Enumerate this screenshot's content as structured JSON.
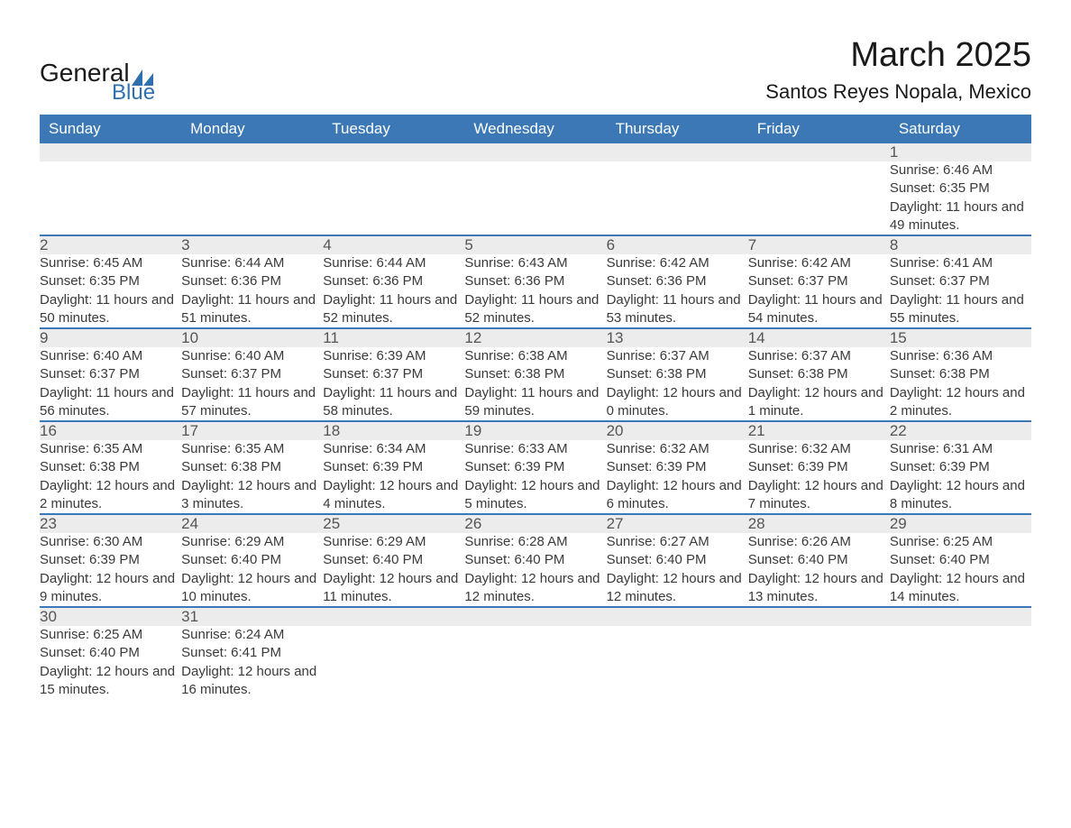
{
  "logo": {
    "general": "General",
    "blue": "Blue",
    "shape_color": "#2f6fad"
  },
  "title": "March 2025",
  "location": "Santos Reyes Nopala, Mexico",
  "colors": {
    "header_bg": "#3b78b5",
    "header_text": "#ffffff",
    "daynum_bg": "#ececec",
    "border": "#3b78b5",
    "body_text": "#3a3a3a"
  },
  "weekdays": [
    "Sunday",
    "Monday",
    "Tuesday",
    "Wednesday",
    "Thursday",
    "Friday",
    "Saturday"
  ],
  "weeks": [
    {
      "nums": [
        "",
        "",
        "",
        "",
        "",
        "",
        "1"
      ],
      "details": [
        "",
        "",
        "",
        "",
        "",
        "",
        "Sunrise: 6:46 AM\nSunset: 6:35 PM\nDaylight: 11 hours and 49 minutes."
      ]
    },
    {
      "nums": [
        "2",
        "3",
        "4",
        "5",
        "6",
        "7",
        "8"
      ],
      "details": [
        "Sunrise: 6:45 AM\nSunset: 6:35 PM\nDaylight: 11 hours and 50 minutes.",
        "Sunrise: 6:44 AM\nSunset: 6:36 PM\nDaylight: 11 hours and 51 minutes.",
        "Sunrise: 6:44 AM\nSunset: 6:36 PM\nDaylight: 11 hours and 52 minutes.",
        "Sunrise: 6:43 AM\nSunset: 6:36 PM\nDaylight: 11 hours and 52 minutes.",
        "Sunrise: 6:42 AM\nSunset: 6:36 PM\nDaylight: 11 hours and 53 minutes.",
        "Sunrise: 6:42 AM\nSunset: 6:37 PM\nDaylight: 11 hours and 54 minutes.",
        "Sunrise: 6:41 AM\nSunset: 6:37 PM\nDaylight: 11 hours and 55 minutes."
      ]
    },
    {
      "nums": [
        "9",
        "10",
        "11",
        "12",
        "13",
        "14",
        "15"
      ],
      "details": [
        "Sunrise: 6:40 AM\nSunset: 6:37 PM\nDaylight: 11 hours and 56 minutes.",
        "Sunrise: 6:40 AM\nSunset: 6:37 PM\nDaylight: 11 hours and 57 minutes.",
        "Sunrise: 6:39 AM\nSunset: 6:37 PM\nDaylight: 11 hours and 58 minutes.",
        "Sunrise: 6:38 AM\nSunset: 6:38 PM\nDaylight: 11 hours and 59 minutes.",
        "Sunrise: 6:37 AM\nSunset: 6:38 PM\nDaylight: 12 hours and 0 minutes.",
        "Sunrise: 6:37 AM\nSunset: 6:38 PM\nDaylight: 12 hours and 1 minute.",
        "Sunrise: 6:36 AM\nSunset: 6:38 PM\nDaylight: 12 hours and 2 minutes."
      ]
    },
    {
      "nums": [
        "16",
        "17",
        "18",
        "19",
        "20",
        "21",
        "22"
      ],
      "details": [
        "Sunrise: 6:35 AM\nSunset: 6:38 PM\nDaylight: 12 hours and 2 minutes.",
        "Sunrise: 6:35 AM\nSunset: 6:38 PM\nDaylight: 12 hours and 3 minutes.",
        "Sunrise: 6:34 AM\nSunset: 6:39 PM\nDaylight: 12 hours and 4 minutes.",
        "Sunrise: 6:33 AM\nSunset: 6:39 PM\nDaylight: 12 hours and 5 minutes.",
        "Sunrise: 6:32 AM\nSunset: 6:39 PM\nDaylight: 12 hours and 6 minutes.",
        "Sunrise: 6:32 AM\nSunset: 6:39 PM\nDaylight: 12 hours and 7 minutes.",
        "Sunrise: 6:31 AM\nSunset: 6:39 PM\nDaylight: 12 hours and 8 minutes."
      ]
    },
    {
      "nums": [
        "23",
        "24",
        "25",
        "26",
        "27",
        "28",
        "29"
      ],
      "details": [
        "Sunrise: 6:30 AM\nSunset: 6:39 PM\nDaylight: 12 hours and 9 minutes.",
        "Sunrise: 6:29 AM\nSunset: 6:40 PM\nDaylight: 12 hours and 10 minutes.",
        "Sunrise: 6:29 AM\nSunset: 6:40 PM\nDaylight: 12 hours and 11 minutes.",
        "Sunrise: 6:28 AM\nSunset: 6:40 PM\nDaylight: 12 hours and 12 minutes.",
        "Sunrise: 6:27 AM\nSunset: 6:40 PM\nDaylight: 12 hours and 12 minutes.",
        "Sunrise: 6:26 AM\nSunset: 6:40 PM\nDaylight: 12 hours and 13 minutes.",
        "Sunrise: 6:25 AM\nSunset: 6:40 PM\nDaylight: 12 hours and 14 minutes."
      ]
    },
    {
      "nums": [
        "30",
        "31",
        "",
        "",
        "",
        "",
        ""
      ],
      "details": [
        "Sunrise: 6:25 AM\nSunset: 6:40 PM\nDaylight: 12 hours and 15 minutes.",
        "Sunrise: 6:24 AM\nSunset: 6:41 PM\nDaylight: 12 hours and 16 minutes.",
        "",
        "",
        "",
        "",
        ""
      ]
    }
  ]
}
